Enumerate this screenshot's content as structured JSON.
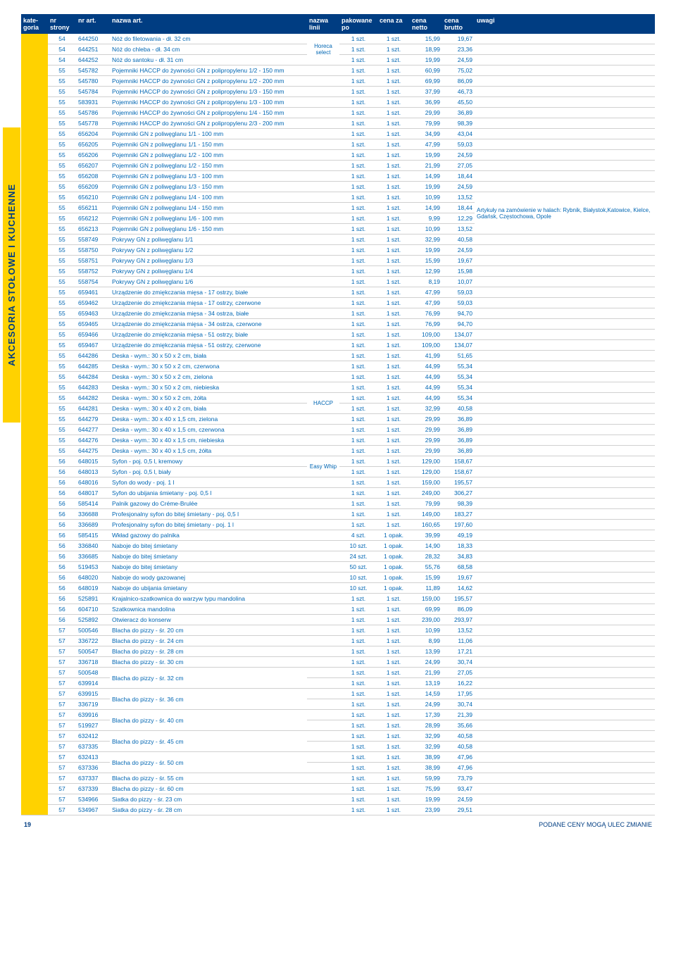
{
  "header": {
    "c1": "kate-\ngoria",
    "c2": "nr\nstrony",
    "c3": "nr\nart.",
    "c4": "nazwa\nart.",
    "c5": "nazwa\nlinii",
    "c6": "pakowane\npo",
    "c7": "cena\nza",
    "c8": "cena\nnetto",
    "c9": "cena\nbrutto",
    "c10": "uwagi"
  },
  "sidebar": "AKCESORIA STOŁOWE I KUCHENNE",
  "line_label": "Horeca select",
  "haccp_label": "HACCP",
  "easywhip_label": "Easy Whip",
  "note_text": "Artykuły na zamówienie w halach: Rybnik, Białystok,Katowice, Kielce, Gdańsk, Częstochowa, Opole",
  "footer_page": "19",
  "footer_note": "PODANE CENY MOGĄ ULEC ZMIANIE",
  "colors": {
    "header_bg": "#003d82",
    "accent": "#ffd200",
    "text": "#0066b3"
  },
  "rows": [
    {
      "pg": "54",
      "art": "644250",
      "name": "Nóż do filetowania - dł. 32 cm",
      "pack": "1 szt.",
      "per": "1 szt.",
      "net": "15,99",
      "gross": "19,67"
    },
    {
      "pg": "54",
      "art": "644251",
      "name": "Nóż do chleba - dł. 34 cm",
      "pack": "1 szt.",
      "per": "1 szt.",
      "net": "18,99",
      "gross": "23,36"
    },
    {
      "pg": "54",
      "art": "644252",
      "name": "Nóż do santoku - dł. 31 cm",
      "pack": "1 szt.",
      "per": "1 szt.",
      "net": "19,99",
      "gross": "24,59"
    },
    {
      "pg": "55",
      "art": "545782",
      "name": "Pojemniki HACCP do żywności GN z polipropylenu 1/2 - 150 mm",
      "pack": "1 szt.",
      "per": "1 szt.",
      "net": "60,99",
      "gross": "75,02"
    },
    {
      "pg": "55",
      "art": "545780",
      "name": "Pojemniki HACCP do żywności GN z polipropylenu 1/2 - 200 mm",
      "pack": "1 szt.",
      "per": "1 szt.",
      "net": "69,99",
      "gross": "86,09"
    },
    {
      "pg": "55",
      "art": "545784",
      "name": "Pojemniki HACCP do żywności GN z polipropylenu 1/3 - 150 mm",
      "pack": "1 szt.",
      "per": "1 szt.",
      "net": "37,99",
      "gross": "46,73"
    },
    {
      "pg": "55",
      "art": "583931",
      "name": "Pojemniki HACCP do żywności GN z polipropylenu 1/3 - 100 mm",
      "pack": "1 szt.",
      "per": "1 szt.",
      "net": "36,99",
      "gross": "45,50"
    },
    {
      "pg": "55",
      "art": "545786",
      "name": "Pojemniki HACCP do żywności GN z polipropylenu 1/4 - 150 mm",
      "pack": "1 szt.",
      "per": "1 szt.",
      "net": "29,99",
      "gross": "36,89"
    },
    {
      "pg": "55",
      "art": "545778",
      "name": "Pojemniki HACCP do żywności GN z polipropylenu 2/3 - 200 mm",
      "pack": "1 szt.",
      "per": "1 szt.",
      "net": "79,99",
      "gross": "98,39"
    },
    {
      "pg": "55",
      "art": "656204",
      "name": "Pojemniki GN z poliwęglanu 1/1 - 100 mm",
      "pack": "1 szt.",
      "per": "1 szt.",
      "net": "34,99",
      "gross": "43,04"
    },
    {
      "pg": "55",
      "art": "656205",
      "name": "Pojemniki GN z poliwęglanu 1/1 - 150 mm",
      "pack": "1 szt.",
      "per": "1 szt.",
      "net": "47,99",
      "gross": "59,03"
    },
    {
      "pg": "55",
      "art": "656206",
      "name": "Pojemniki GN z poliwęglanu 1/2 - 100 mm",
      "pack": "1 szt.",
      "per": "1 szt.",
      "net": "19,99",
      "gross": "24,59"
    },
    {
      "pg": "55",
      "art": "656207",
      "name": "Pojemniki GN z poliwęglanu 1/2 - 150 mm",
      "pack": "1 szt.",
      "per": "1 szt.",
      "net": "21,99",
      "gross": "27,05"
    },
    {
      "pg": "55",
      "art": "656208",
      "name": "Pojemniki GN z poliwęglanu 1/3 - 100 mm",
      "pack": "1 szt.",
      "per": "1 szt.",
      "net": "14,99",
      "gross": "18,44"
    },
    {
      "pg": "55",
      "art": "656209",
      "name": "Pojemniki GN z poliwęglanu 1/3 - 150 mm",
      "pack": "1 szt.",
      "per": "1 szt.",
      "net": "19,99",
      "gross": "24,59"
    },
    {
      "pg": "55",
      "art": "656210",
      "name": "Pojemniki GN z poliwęglanu 1/4 - 100 mm",
      "pack": "1 szt.",
      "per": "1 szt.",
      "net": "10,99",
      "gross": "13,52"
    },
    {
      "pg": "55",
      "art": "656211",
      "name": "Pojemniki GN z poliwęglanu 1/4 - 150 mm",
      "pack": "1 szt.",
      "per": "1 szt.",
      "net": "14,99",
      "gross": "18,44"
    },
    {
      "pg": "55",
      "art": "656212",
      "name": "Pojemniki GN z poliwęglanu 1/6 - 100 mm",
      "pack": "1 szt.",
      "per": "1 szt.",
      "net": "9,99",
      "gross": "12,29"
    },
    {
      "pg": "55",
      "art": "656213",
      "name": "Pojemniki GN z poliwęglanu 1/6 - 150 mm",
      "pack": "1 szt.",
      "per": "1 szt.",
      "net": "10,99",
      "gross": "13,52"
    },
    {
      "pg": "55",
      "art": "558749",
      "name": "Pokrywy GN z poliwęglanu 1/1",
      "pack": "1 szt.",
      "per": "1 szt.",
      "net": "32,99",
      "gross": "40,58"
    },
    {
      "pg": "55",
      "art": "558750",
      "name": "Pokrywy GN z poliwęglanu 1/2",
      "pack": "1 szt.",
      "per": "1 szt.",
      "net": "19,99",
      "gross": "24,59"
    },
    {
      "pg": "55",
      "art": "558751",
      "name": "Pokrywy GN z poliwęglanu 1/3",
      "pack": "1 szt.",
      "per": "1 szt.",
      "net": "15,99",
      "gross": "19,67"
    },
    {
      "pg": "55",
      "art": "558752",
      "name": "Pokrywy GN z poliwęglanu 1/4",
      "pack": "1 szt.",
      "per": "1 szt.",
      "net": "12,99",
      "gross": "15,98"
    },
    {
      "pg": "55",
      "art": "558754",
      "name": "Pokrywy GN z poliwęglanu 1/6",
      "pack": "1 szt.",
      "per": "1 szt.",
      "net": "8,19",
      "gross": "10,07"
    },
    {
      "pg": "55",
      "art": "659461",
      "name": "Urządzenie do zmiękczania mięsa - 17 ostrzy, białe",
      "pack": "1 szt.",
      "per": "1 szt.",
      "net": "47,99",
      "gross": "59,03"
    },
    {
      "pg": "55",
      "art": "659462",
      "name": "Urządzenie do zmiękczania mięsa - 17 ostrzy, czerwone",
      "pack": "1 szt.",
      "per": "1 szt.",
      "net": "47,99",
      "gross": "59,03"
    },
    {
      "pg": "55",
      "art": "659463",
      "name": "Urządzenie do zmiękczania mięsa - 34 ostrza, białe",
      "pack": "1 szt.",
      "per": "1 szt.",
      "net": "76,99",
      "gross": "94,70"
    },
    {
      "pg": "55",
      "art": "659465",
      "name": "Urządzenie do zmiękczania mięsa - 34 ostrza, czerwone",
      "pack": "1 szt.",
      "per": "1 szt.",
      "net": "76,99",
      "gross": "94,70"
    },
    {
      "pg": "55",
      "art": "659466",
      "name": "Urządzenie do zmiękczania mięsa - 51 ostrzy, białe",
      "pack": "1 szt.",
      "per": "1 szt.",
      "net": "109,00",
      "gross": "134,07"
    },
    {
      "pg": "55",
      "art": "659467",
      "name": "Urządzenie do zmiękczania mięsa - 51 ostrzy, czerwone",
      "pack": "1 szt.",
      "per": "1 szt.",
      "net": "109,00",
      "gross": "134,07"
    },
    {
      "pg": "55",
      "art": "644286",
      "name": "Deska - wym.: 30 x 50 x 2 cm, biała",
      "pack": "1 szt.",
      "per": "1 szt.",
      "net": "41,99",
      "gross": "51,65"
    },
    {
      "pg": "55",
      "art": "644285",
      "name": "Deska - wym.: 30 x 50 x 2 cm, czerwona",
      "pack": "1 szt.",
      "per": "1 szt.",
      "net": "44,99",
      "gross": "55,34"
    },
    {
      "pg": "55",
      "art": "644284",
      "name": "Deska - wym.: 30 x 50 x 2 cm, zielona",
      "pack": "1 szt.",
      "per": "1 szt.",
      "net": "44,99",
      "gross": "55,34"
    },
    {
      "pg": "55",
      "art": "644283",
      "name": "Deska - wym.: 30 x 50 x 2 cm, niebieska",
      "pack": "1 szt.",
      "per": "1 szt.",
      "net": "44,99",
      "gross": "55,34"
    },
    {
      "pg": "55",
      "art": "644282",
      "name": "Deska - wym.: 30 x 50 x 2 cm, żółta",
      "pack": "1 szt.",
      "per": "1 szt.",
      "net": "44,99",
      "gross": "55,34"
    },
    {
      "pg": "55",
      "art": "644281",
      "name": "Deska - wym.: 30 x 40 x 2 cm, biała",
      "pack": "1 szt.",
      "per": "1 szt.",
      "net": "32,99",
      "gross": "40,58"
    },
    {
      "pg": "55",
      "art": "644279",
      "name": "Deska - wym.: 30 x 40 x 1,5 cm, zielona",
      "pack": "1 szt.",
      "per": "1 szt.",
      "net": "29,99",
      "gross": "36,89"
    },
    {
      "pg": "55",
      "art": "644277",
      "name": "Deska - wym.: 30 x 40 x 1,5 cm, czerwona",
      "pack": "1 szt.",
      "per": "1 szt.",
      "net": "29,99",
      "gross": "36,89"
    },
    {
      "pg": "55",
      "art": "644276",
      "name": "Deska - wym.: 30 x 40 x 1,5 cm, niebieska",
      "pack": "1 szt.",
      "per": "1 szt.",
      "net": "29,99",
      "gross": "36,89"
    },
    {
      "pg": "55",
      "art": "644275",
      "name": "Deska - wym.: 30 x 40 x 1,5 cm, żółta",
      "pack": "1 szt.",
      "per": "1 szt.",
      "net": "29,99",
      "gross": "36,89"
    },
    {
      "pg": "56",
      "art": "648015",
      "name": "Syfon - poj. 0,5 l, kremowy",
      "pack": "1 szt.",
      "per": "1 szt.",
      "net": "129,00",
      "gross": "158,67"
    },
    {
      "pg": "56",
      "art": "648013",
      "name": "Syfon - poj. 0,5 l, biały",
      "pack": "1 szt.",
      "per": "1 szt.",
      "net": "129,00",
      "gross": "158,67"
    },
    {
      "pg": "56",
      "art": "648016",
      "name": "Syfon do wody - poj. 1 l",
      "pack": "1 szt.",
      "per": "1 szt.",
      "net": "159,00",
      "gross": "195,57"
    },
    {
      "pg": "56",
      "art": "648017",
      "name": "Syfon do ubijania śmietany - poj. 0,5 l",
      "pack": "1 szt.",
      "per": "1 szt.",
      "net": "249,00",
      "gross": "306,27"
    },
    {
      "pg": "56",
      "art": "585414",
      "name": "Palnik gazowy do Créme-Brulée",
      "pack": "1 szt.",
      "per": "1 szt.",
      "net": "79,99",
      "gross": "98,39"
    },
    {
      "pg": "56",
      "art": "336688",
      "name": "Profesjonalny syfon do bitej śmietany - poj. 0,5 l",
      "pack": "1 szt.",
      "per": "1 szt.",
      "net": "149,00",
      "gross": "183,27"
    },
    {
      "pg": "56",
      "art": "336689",
      "name": "Profesjonalny syfon do bitej śmietany - poj. 1 l",
      "pack": "1 szt.",
      "per": "1 szt.",
      "net": "160,65",
      "gross": "197,60"
    },
    {
      "pg": "56",
      "art": "585415",
      "name": "Wkład gazowy do palnika",
      "pack": "4 szt.",
      "per": "1 opak.",
      "net": "39,99",
      "gross": "49,19"
    },
    {
      "pg": "56",
      "art": "336840",
      "name": "Naboje do bitej śmietany",
      "pack": "10 szt.",
      "per": "1 opak.",
      "net": "14,90",
      "gross": "18,33"
    },
    {
      "pg": "56",
      "art": "336685",
      "name": "Naboje do bitej śmietany",
      "pack": "24 szt.",
      "per": "1 opak.",
      "net": "28,32",
      "gross": "34,83"
    },
    {
      "pg": "56",
      "art": "519453",
      "name": "Naboje do bitej śmietany",
      "pack": "50 szt.",
      "per": "1 opak.",
      "net": "55,76",
      "gross": "68,58"
    },
    {
      "pg": "56",
      "art": "648020",
      "name": "Naboje do wody gazowanej",
      "pack": "10 szt.",
      "per": "1 opak.",
      "net": "15,99",
      "gross": "19,67"
    },
    {
      "pg": "56",
      "art": "648019",
      "name": "Naboje do ubijania śmietany",
      "pack": "10 szt.",
      "per": "1 opak.",
      "net": "11,89",
      "gross": "14,62"
    },
    {
      "pg": "56",
      "art": "525891",
      "name": "Krajalnico-szatkownica do warzyw typu mandolina",
      "pack": "1 szt.",
      "per": "1 szt.",
      "net": "159,00",
      "gross": "195,57"
    },
    {
      "pg": "56",
      "art": "604710",
      "name": "Szatkownica mandolina",
      "pack": "1 szt.",
      "per": "1 szt.",
      "net": "69,99",
      "gross": "86,09"
    },
    {
      "pg": "56",
      "art": "525892",
      "name": "Otwieracz do konserw",
      "pack": "1 szt.",
      "per": "1 szt.",
      "net": "239,00",
      "gross": "293,97"
    },
    {
      "pg": "57",
      "art": "500546",
      "name": "Blacha do pizzy - śr. 20 cm",
      "pack": "1 szt.",
      "per": "1 szt.",
      "net": "10,99",
      "gross": "13,52"
    },
    {
      "pg": "57",
      "art": "336722",
      "name": "Blacha do pizzy - śr. 24 cm",
      "pack": "1 szt.",
      "per": "1 szt.",
      "net": "8,99",
      "gross": "11,06"
    },
    {
      "pg": "57",
      "art": "500547",
      "name": "Blacha do pizzy - śr. 28 cm",
      "pack": "1 szt.",
      "per": "1 szt.",
      "net": "13,99",
      "gross": "17,21"
    },
    {
      "pg": "57",
      "art": "336718",
      "name": "Blacha do pizzy - śr. 30 cm",
      "pack": "1 szt.",
      "per": "1 szt.",
      "net": "24,99",
      "gross": "30,74"
    },
    {
      "pg": "57",
      "art": "500548",
      "name": "Blacha do pizzy - śr. 32 cm",
      "span": true,
      "pack": "1 szt.",
      "per": "1 szt.",
      "net": "21,99",
      "gross": "27,05"
    },
    {
      "pg": "57",
      "art": "639914",
      "name": "",
      "tail": true,
      "pack": "1 szt.",
      "per": "1 szt.",
      "net": "13,19",
      "gross": "16,22"
    },
    {
      "pg": "57",
      "art": "639915",
      "name": "Blacha do pizzy - śr. 36 cm",
      "span": true,
      "pack": "1 szt.",
      "per": "1 szt.",
      "net": "14,59",
      "gross": "17,95"
    },
    {
      "pg": "57",
      "art": "336719",
      "name": "",
      "tail": true,
      "pack": "1 szt.",
      "per": "1 szt.",
      "net": "24,99",
      "gross": "30,74"
    },
    {
      "pg": "57",
      "art": "639916",
      "name": "Blacha do pizzy - śr. 40 cm",
      "span": true,
      "pack": "1 szt.",
      "per": "1 szt.",
      "net": "17,39",
      "gross": "21,39"
    },
    {
      "pg": "57",
      "art": "519927",
      "name": "",
      "tail": true,
      "pack": "1 szt.",
      "per": "1 szt.",
      "net": "28,99",
      "gross": "35,66"
    },
    {
      "pg": "57",
      "art": "632412",
      "name": "Blacha do pizzy - śr. 45 cm",
      "span": true,
      "pack": "1 szt.",
      "per": "1 szt.",
      "net": "32,99",
      "gross": "40,58"
    },
    {
      "pg": "57",
      "art": "637335",
      "name": "",
      "tail": true,
      "pack": "1 szt.",
      "per": "1 szt.",
      "net": "32,99",
      "gross": "40,58"
    },
    {
      "pg": "57",
      "art": "632413",
      "name": "Blacha do pizzy - śr. 50 cm",
      "span": true,
      "pack": "1 szt.",
      "per": "1 szt.",
      "net": "38,99",
      "gross": "47,96"
    },
    {
      "pg": "57",
      "art": "637336",
      "name": "",
      "tail": true,
      "pack": "1 szt.",
      "per": "1 szt.",
      "net": "38,99",
      "gross": "47,96"
    },
    {
      "pg": "57",
      "art": "637337",
      "name": "Blacha do pizzy - śr. 55 cm",
      "pack": "1 szt.",
      "per": "1 szt.",
      "net": "59,99",
      "gross": "73,79"
    },
    {
      "pg": "57",
      "art": "637339",
      "name": "Blacha do pizzy - śr. 60 cm",
      "pack": "1 szt.",
      "per": "1 szt.",
      "net": "75,99",
      "gross": "93,47"
    },
    {
      "pg": "57",
      "art": "534966",
      "name": "Siatka do pizzy - śr. 23 cm",
      "pack": "1 szt.",
      "per": "1 szt.",
      "net": "19,99",
      "gross": "24,59"
    },
    {
      "pg": "57",
      "art": "534967",
      "name": "Siatka do pizzy - śr. 28 cm",
      "pack": "1 szt.",
      "per": "1 szt.",
      "net": "23,99",
      "gross": "29,51"
    }
  ]
}
